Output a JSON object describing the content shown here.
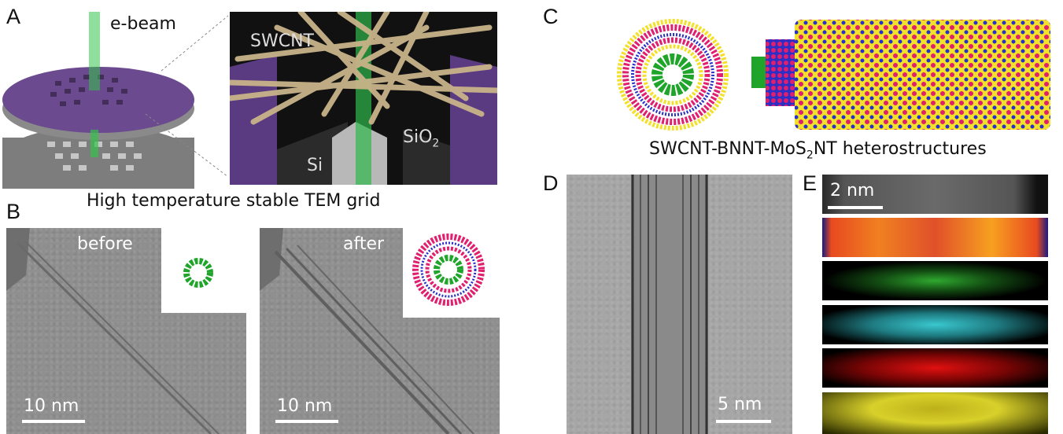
{
  "panels": {
    "A": {
      "label": "A",
      "ebeam_label": "e-beam",
      "swcnt_label": "SWCNT",
      "si_label": "Si",
      "sio2_label": "SiO",
      "sio2_sub": "2",
      "caption": "High temperature stable TEM grid"
    },
    "B": {
      "label": "B",
      "before_label": "before",
      "after_label": "after",
      "scale_left": "10 nm",
      "scale_right": "10 nm"
    },
    "C": {
      "label": "C",
      "caption_pre": "SWCNT-BNNT-MoS",
      "caption_sub": "2",
      "caption_post": "NT heterostructures"
    },
    "D": {
      "label": "D",
      "scale": "5 nm"
    },
    "E": {
      "label": "E",
      "scale": "2 nm"
    }
  },
  "colors": {
    "purple_disk": "#6b4a8f",
    "green_tube": "#1fa52a",
    "mos2_yellow": "#f2e02a",
    "mos2_magenta": "#e0206e",
    "bn_blue": "#2a2fc8"
  }
}
